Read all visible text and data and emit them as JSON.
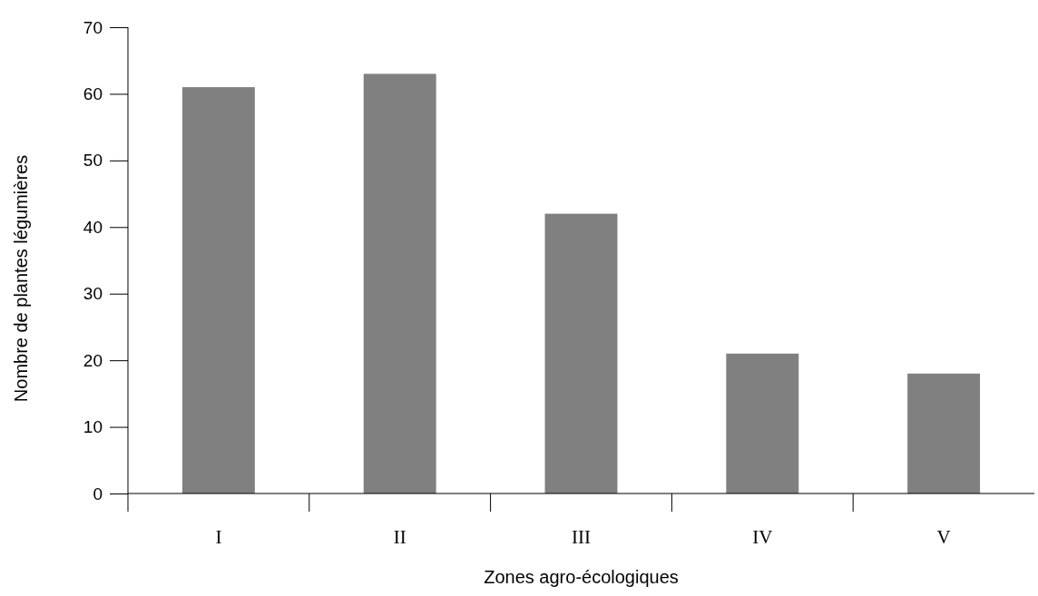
{
  "chart_data": {
    "type": "bar",
    "xlabel": "Zones agro-écologiques",
    "ylabel": "Nombre de plantes légumières",
    "categories": [
      "I",
      "II",
      "III",
      "IV",
      "V"
    ],
    "values": [
      61,
      63,
      42,
      21,
      18
    ],
    "color": "#808080",
    "ylim": [
      0,
      70
    ],
    "yticks": [
      0,
      10,
      20,
      30,
      40,
      50,
      60,
      70
    ],
    "grid": false
  }
}
